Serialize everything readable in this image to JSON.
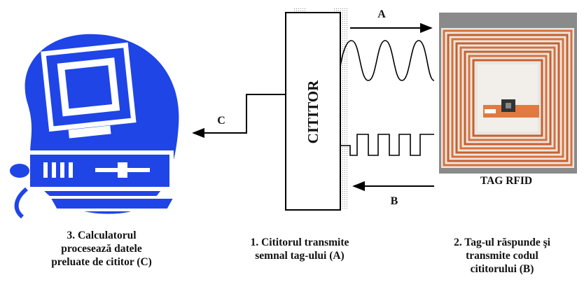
{
  "diagram": {
    "reader_label": "CITITOR",
    "tag_label": "TAG RFID",
    "arrows": {
      "a": "A",
      "b": "B",
      "c": "C"
    },
    "captions": {
      "computer": "3. Calculatorul\nprocesează datele\npreluate de cititor (C)",
      "reader": "1. Cititorul transmite\nsemnal tag-ului (A)",
      "tag": "2. Tag-ul răspunde şi\ntransmite codul\ncititorului (B)"
    },
    "colors": {
      "computer_blue": "#1f45e6",
      "tag_bg": "#e9e6e1",
      "coil_copper": "#d9703a",
      "stroke": "#000000"
    },
    "icons": [
      "computer-icon",
      "rfid-tag-image"
    ]
  }
}
